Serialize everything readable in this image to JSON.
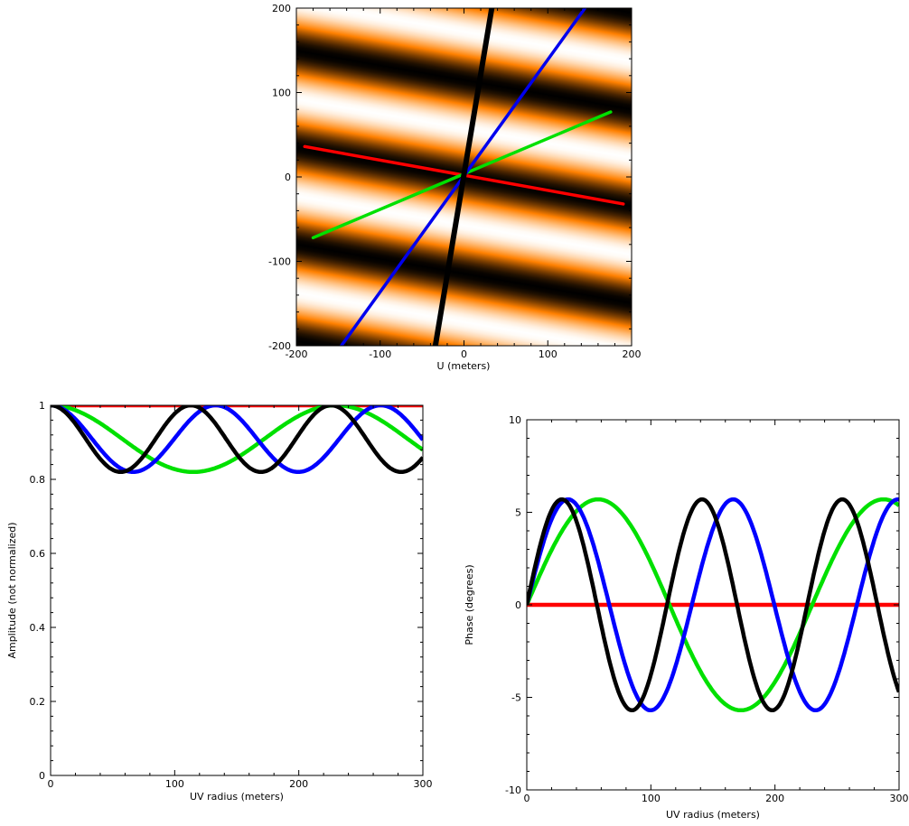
{
  "chart_data": [
    {
      "id": "uv_map",
      "type": "heatmap",
      "title": "",
      "xlabel": "U (meters)",
      "ylabel": "",
      "xlim": [
        -200,
        200
      ],
      "ylim": [
        -200,
        200
      ],
      "x_ticks": [
        -200,
        -100,
        0,
        100,
        200
      ],
      "y_ticks": [
        -200,
        -100,
        0,
        100,
        200
      ],
      "fringe": {
        "period_m": 113,
        "line_angle_deg": -10,
        "colormap": [
          "#000000",
          "#ff8000",
          "#ffffff"
        ]
      },
      "series": [
        {
          "color": "#ff0000",
          "points": [
            [
              -190,
              36
            ],
            [
              190,
              -32
            ]
          ]
        },
        {
          "color": "#00e000",
          "points": [
            [
              -180,
              -72
            ],
            [
              175,
              77
            ]
          ]
        },
        {
          "color": "#0000ee",
          "points": [
            [
              -150,
              -205
            ],
            [
              148,
              205
            ]
          ]
        },
        {
          "color": "#000000",
          "points": [
            [
              -35,
              -205
            ],
            [
              34,
              205
            ]
          ]
        }
      ]
    },
    {
      "id": "amplitude",
      "type": "line",
      "title": "",
      "xlabel": "UV radius (meters)",
      "ylabel": "Amplitude (not normalized)",
      "xlim": [
        0,
        300
      ],
      "ylim": [
        0,
        1
      ],
      "x_ticks": [
        0,
        100,
        200,
        300
      ],
      "y_ticks": [
        0,
        0.2,
        0.4,
        0.6,
        0.8,
        1
      ],
      "y_tick_labels": [
        "0",
        "0.2",
        "0.4",
        "0.6",
        "0.8",
        "1"
      ],
      "series": [
        {
          "color": "#ff0000",
          "values": [
            [
              0,
              1
            ],
            [
              300,
              1
            ]
          ]
        },
        {
          "color": "#00e000",
          "period": 230,
          "min": 0.82,
          "max": 1
        },
        {
          "color": "#0000ff",
          "period": 133,
          "min": 0.82,
          "max": 1
        },
        {
          "color": "#000000",
          "period": 113,
          "min": 0.82,
          "max": 1
        }
      ]
    },
    {
      "id": "phase",
      "type": "line",
      "title": "",
      "xlabel": "UV radius (meters)",
      "ylabel": "Phase (degrees)",
      "xlim": [
        0,
        300
      ],
      "ylim": [
        -10,
        10
      ],
      "x_ticks": [
        0,
        100,
        200,
        300
      ],
      "y_ticks": [
        -10,
        -5,
        0,
        5,
        10
      ],
      "series": [
        {
          "color": "#ff0000",
          "values": [
            [
              0,
              0
            ],
            [
              300,
              0
            ]
          ]
        },
        {
          "color": "#00e000",
          "period": 230,
          "amplitude": 5.7
        },
        {
          "color": "#0000ff",
          "period": 133,
          "amplitude": 5.7
        },
        {
          "color": "#000000",
          "period": 113,
          "amplitude": 5.7
        }
      ]
    }
  ]
}
